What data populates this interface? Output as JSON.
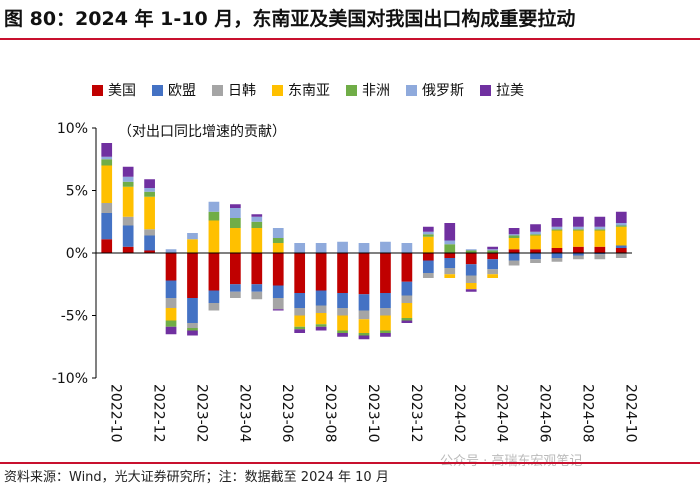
{
  "title": "图 80：2024 年 1-10 月，东南亚及美国对我国出口构成重要拉动",
  "source": "资料来源：Wind，光大证券研究所；注：数据截至 2024 年 10 月",
  "watermark": "公众号 · 高瑞东宏观笔记",
  "chart_data": {
    "type": "bar",
    "stacked": true,
    "annotation": "（对出口同比增速的贡献）",
    "ylim": [
      -10,
      10
    ],
    "yticks": [
      10,
      5,
      0,
      -5,
      -10
    ],
    "ytick_labels": [
      "10%",
      "5%",
      "0%",
      "-5%",
      "-10%"
    ],
    "unit": "%",
    "categories": [
      "2022-10",
      "2022-11",
      "2022-12",
      "2023-01",
      "2023-02",
      "2023-03",
      "2023-04",
      "2023-05",
      "2023-06",
      "2023-07",
      "2023-08",
      "2023-09",
      "2023-10",
      "2023-11",
      "2023-12",
      "2024-01",
      "2024-02",
      "2024-03",
      "2024-04",
      "2024-05",
      "2024-06",
      "2024-07",
      "2024-08",
      "2024-09",
      "2024-10"
    ],
    "xtick_labels": [
      "2022-10",
      "2022-12",
      "2023-02",
      "2023-04",
      "2023-06",
      "2023-08",
      "2023-10",
      "2023-12",
      "2024-02",
      "2024-04",
      "2024-06",
      "2024-08",
      "2024-10"
    ],
    "series": [
      {
        "name": "美国",
        "color": "#c00000",
        "values": [
          1.1,
          0.5,
          0.2,
          -2.2,
          -3.6,
          -3.0,
          -2.5,
          -2.5,
          -2.6,
          -3.2,
          -3.0,
          -3.2,
          -3.3,
          -3.2,
          -2.3,
          -0.6,
          -0.4,
          -0.9,
          -0.5,
          0.3,
          0.3,
          0.4,
          0.5,
          0.5,
          0.4
        ]
      },
      {
        "name": "欧盟",
        "color": "#4472c4",
        "values": [
          2.1,
          1.7,
          1.2,
          -1.4,
          -2.0,
          -1.0,
          -0.6,
          -0.6,
          -1.0,
          -1.2,
          -1.2,
          -1.2,
          -1.3,
          -1.2,
          -1.1,
          -1.0,
          -0.8,
          -0.9,
          -0.8,
          -0.6,
          -0.5,
          -0.4,
          -0.2,
          -0.1,
          0.2
        ]
      },
      {
        "name": "日韩",
        "color": "#a5a5a5",
        "values": [
          0.8,
          0.7,
          0.5,
          -0.8,
          -0.4,
          -0.6,
          -0.5,
          -0.6,
          -0.9,
          -0.6,
          -0.6,
          -0.6,
          -0.7,
          -0.6,
          -0.6,
          -0.4,
          -0.5,
          -0.6,
          -0.4,
          -0.4,
          -0.3,
          -0.3,
          -0.3,
          -0.4,
          -0.4
        ]
      },
      {
        "name": "东南亚",
        "color": "#ffc000",
        "values": [
          3.0,
          2.4,
          2.6,
          -1.0,
          1.1,
          2.6,
          2.0,
          2.0,
          0.8,
          -0.9,
          -0.9,
          -1.2,
          -1.1,
          -1.2,
          -1.2,
          1.3,
          -0.3,
          -0.5,
          -0.3,
          0.9,
          1.1,
          1.4,
          1.3,
          1.3,
          1.5
        ]
      },
      {
        "name": "非洲",
        "color": "#70ad47",
        "values": [
          0.5,
          0.4,
          0.4,
          -0.5,
          -0.2,
          0.7,
          0.8,
          0.5,
          0.4,
          -0.2,
          -0.2,
          -0.2,
          -0.2,
          -0.2,
          -0.2,
          0.2,
          0.7,
          0.2,
          0.2,
          0.2,
          0.1,
          0.1,
          0.1,
          0.1,
          0.1
        ]
      },
      {
        "name": "俄罗斯",
        "color": "#8faadc",
        "values": [
          0.2,
          0.4,
          0.3,
          0.3,
          0.5,
          0.8,
          0.8,
          0.4,
          0.8,
          0.8,
          0.8,
          0.9,
          0.8,
          0.9,
          0.8,
          0.2,
          0.3,
          0.1,
          0.1,
          0.1,
          0.2,
          0.2,
          0.2,
          0.2,
          0.2
        ]
      },
      {
        "name": "拉美",
        "color": "#7030a0",
        "values": [
          1.1,
          0.8,
          0.7,
          -0.6,
          -0.4,
          0.0,
          0.3,
          0.2,
          -0.1,
          -0.3,
          -0.3,
          -0.3,
          -0.3,
          -0.3,
          -0.2,
          0.4,
          1.4,
          -0.2,
          0.2,
          0.5,
          0.6,
          0.7,
          0.8,
          0.8,
          0.9
        ]
      }
    ]
  }
}
